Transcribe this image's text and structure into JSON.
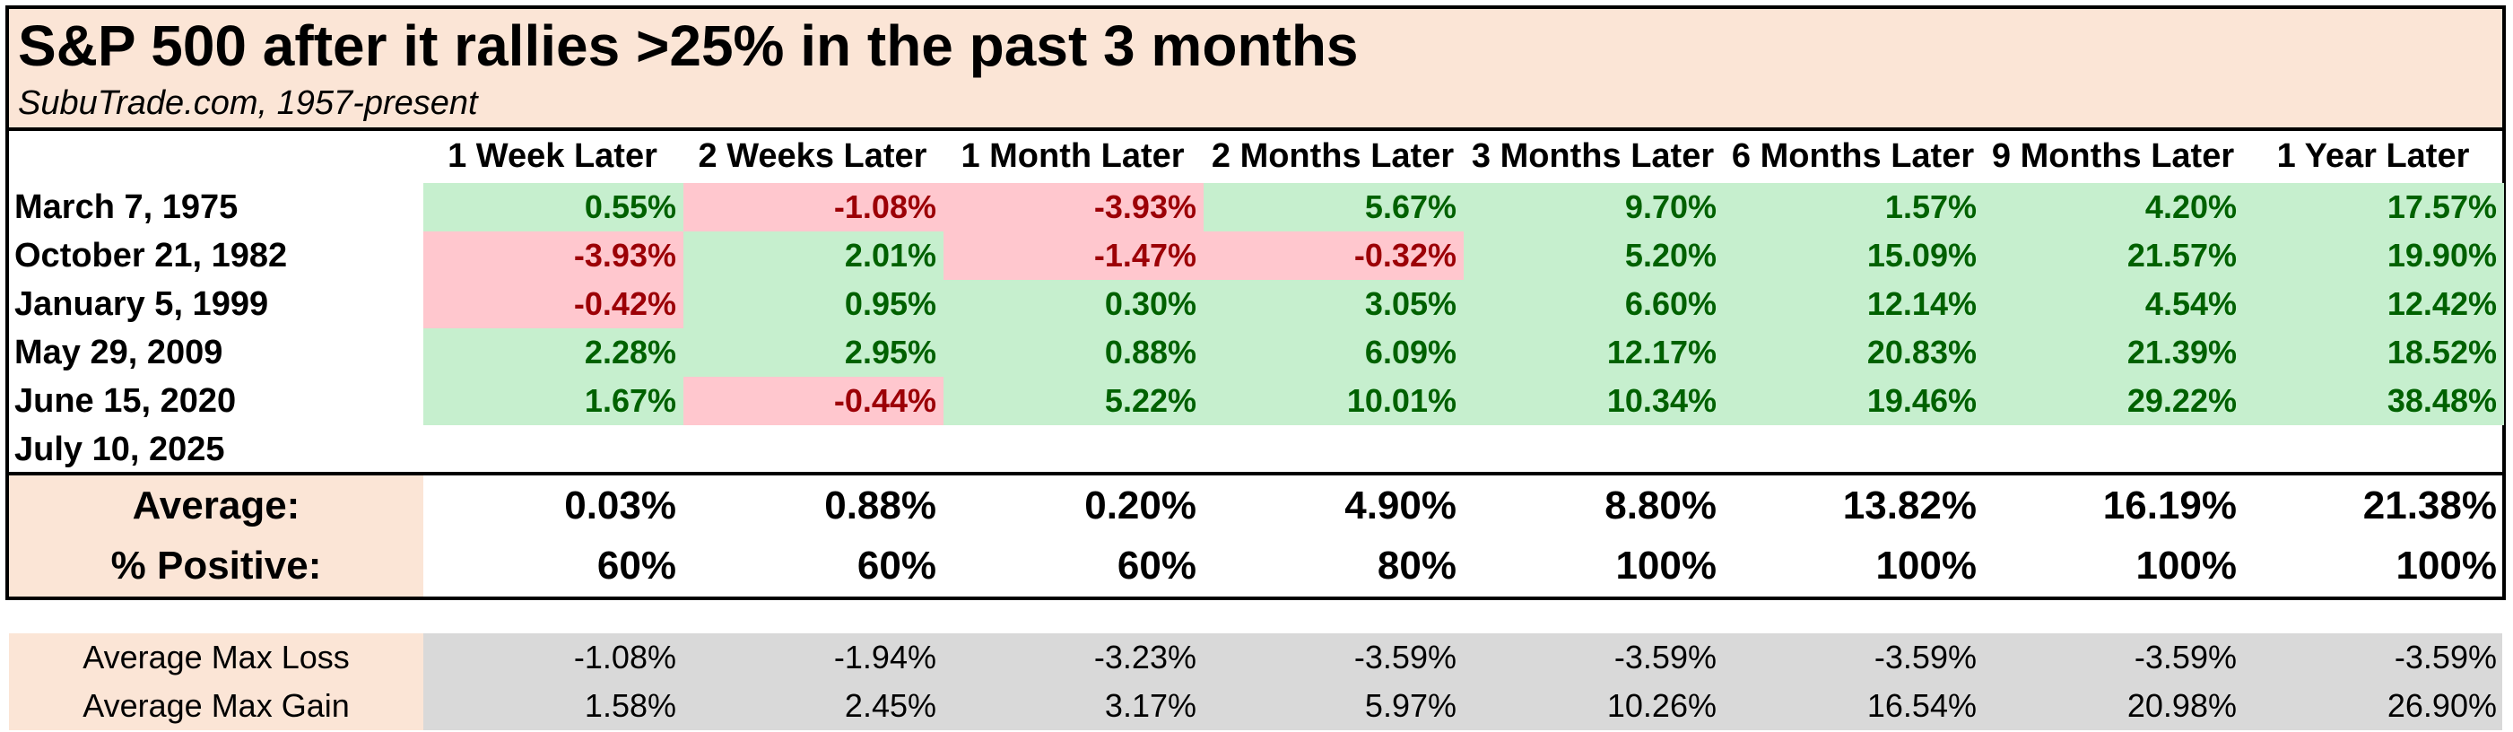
{
  "chart_data": {
    "type": "table",
    "title": "S&P 500 after it rallies >25% in the past 3 months",
    "subtitle": "SubuTrade.com, 1957-present",
    "columns": [
      "1 Week Later",
      "2 Weeks Later",
      "1 Month Later",
      "2 Months Later",
      "3 Months Later",
      "6 Months Later",
      "9 Months Later",
      "1 Year Later"
    ],
    "rows": [
      {
        "date": "March 7, 1975",
        "values": [
          "0.55%",
          "-1.08%",
          "-3.93%",
          "5.67%",
          "9.70%",
          "1.57%",
          "4.20%",
          "17.57%"
        ]
      },
      {
        "date": "October 21, 1982",
        "values": [
          "-3.93%",
          "2.01%",
          "-1.47%",
          "-0.32%",
          "5.20%",
          "15.09%",
          "21.57%",
          "19.90%"
        ]
      },
      {
        "date": "January 5, 1999",
        "values": [
          "-0.42%",
          "0.95%",
          "0.30%",
          "3.05%",
          "6.60%",
          "12.14%",
          "4.54%",
          "12.42%"
        ]
      },
      {
        "date": "May 29, 2009",
        "values": [
          "2.28%",
          "2.95%",
          "0.88%",
          "6.09%",
          "12.17%",
          "20.83%",
          "21.39%",
          "18.52%"
        ]
      },
      {
        "date": "June 15, 2020",
        "values": [
          "1.67%",
          "-0.44%",
          "5.22%",
          "10.01%",
          "10.34%",
          "19.46%",
          "29.22%",
          "38.48%"
        ]
      },
      {
        "date": "July 10, 2025",
        "values": [
          "",
          "",
          "",
          "",
          "",
          "",
          "",
          ""
        ]
      }
    ],
    "average": {
      "label": "Average:",
      "values": [
        "0.03%",
        "0.88%",
        "0.20%",
        "4.90%",
        "8.80%",
        "13.82%",
        "16.19%",
        "21.38%"
      ]
    },
    "percent_positive": {
      "label": "% Positive:",
      "values": [
        "60%",
        "60%",
        "60%",
        "80%",
        "100%",
        "100%",
        "100%",
        "100%"
      ]
    },
    "avg_max_loss": {
      "label": "Average Max Loss",
      "values": [
        "-1.08%",
        "-1.94%",
        "-3.23%",
        "-3.59%",
        "-3.59%",
        "-3.59%",
        "-3.59%",
        "-3.59%"
      ]
    },
    "avg_max_gain": {
      "label": "Average Max Gain",
      "values": [
        "1.58%",
        "2.45%",
        "3.17%",
        "5.97%",
        "10.26%",
        "16.54%",
        "20.98%",
        "26.90%"
      ]
    }
  },
  "colors": {
    "positive_fill": "#c6efce",
    "positive_text": "#006100",
    "negative_fill": "#ffc7ce",
    "negative_text": "#9c0006",
    "header_fill": "#fbe5d6",
    "stats_fill": "#d9d9d9"
  }
}
